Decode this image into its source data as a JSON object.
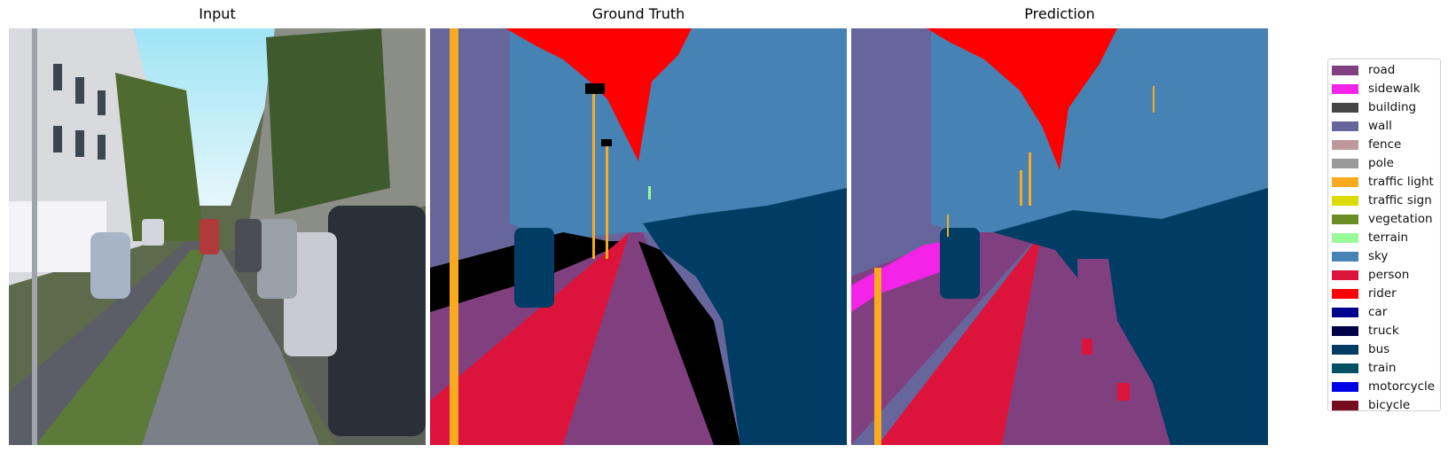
{
  "panels": {
    "input": {
      "title": "Input"
    },
    "ground_truth": {
      "title": "Ground Truth"
    },
    "prediction": {
      "title": "Prediction"
    }
  },
  "legend": {
    "items": [
      {
        "label": "road",
        "color": "#804080"
      },
      {
        "label": "sidewalk",
        "color": "#F423E8"
      },
      {
        "label": "building",
        "color": "#464646"
      },
      {
        "label": "wall",
        "color": "#66669C"
      },
      {
        "label": "fence",
        "color": "#BE9999"
      },
      {
        "label": "pole",
        "color": "#999999"
      },
      {
        "label": "traffic light",
        "color": "#FAAA1E"
      },
      {
        "label": "traffic sign",
        "color": "#DCDC00"
      },
      {
        "label": "vegetation",
        "color": "#6B8E23"
      },
      {
        "label": "terrain",
        "color": "#98FB98"
      },
      {
        "label": "sky",
        "color": "#4682B4"
      },
      {
        "label": "person",
        "color": "#DC143C"
      },
      {
        "label": "rider",
        "color": "#FF0000"
      },
      {
        "label": "car",
        "color": "#00008E"
      },
      {
        "label": "truck",
        "color": "#000046"
      },
      {
        "label": "bus",
        "color": "#003C64"
      },
      {
        "label": "train",
        "color": "#005064"
      },
      {
        "label": "motorcycle",
        "color": "#0000E6"
      },
      {
        "label": "bicycle",
        "color": "#770B20"
      }
    ]
  }
}
